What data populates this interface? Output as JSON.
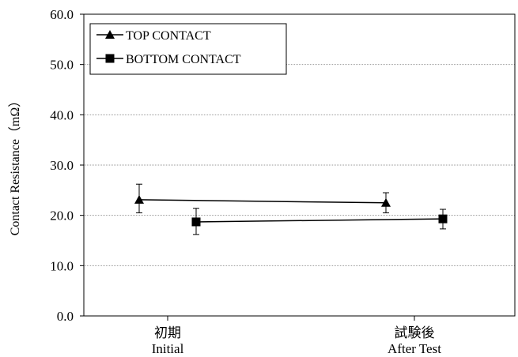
{
  "chart_data": {
    "type": "line",
    "ylabel": "Contact  Resistance（mΩ）",
    "ylim": [
      0,
      60
    ],
    "yticks": [
      "0.0",
      "10.0",
      "20.0",
      "30.0",
      "40.0",
      "50.0",
      "60.0"
    ],
    "categories": [
      {
        "jp": "初期",
        "en": "Initial"
      },
      {
        "jp": "試験後",
        "en": "After Test"
      }
    ],
    "grid": true,
    "legend_position": "top-left",
    "series": [
      {
        "name": "TOP CONTACT",
        "marker": "triangle",
        "values": [
          23.1,
          22.5
        ],
        "error_low": [
          20.5,
          20.5
        ],
        "error_high": [
          26.2,
          24.5
        ]
      },
      {
        "name": "BOTTOM CONTACT",
        "marker": "square",
        "values": [
          18.7,
          19.3
        ],
        "error_low": [
          16.2,
          17.3
        ],
        "error_high": [
          21.4,
          21.2
        ]
      }
    ]
  }
}
